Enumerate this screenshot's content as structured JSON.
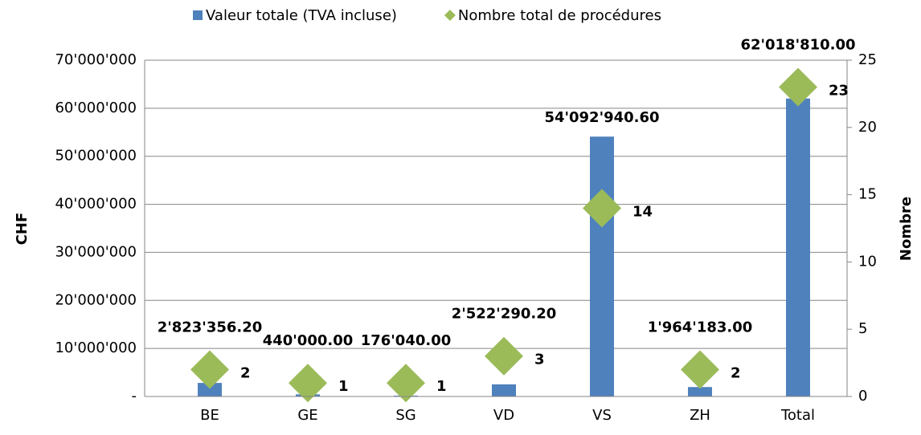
{
  "chart_data": {
    "type": "bar",
    "categories": [
      "BE",
      "GE",
      "SG",
      "VD",
      "VS",
      "ZH",
      "Total"
    ],
    "series": [
      {
        "name": "Valeur totale (TVA incluse)",
        "type": "bar",
        "color": "#4f81bd",
        "values": [
          2823356.2,
          440000.0,
          176040.0,
          2522290.2,
          54092940.6,
          1964183.0,
          62018810.0
        ],
        "value_labels": [
          "2'823'356.20",
          "440'000.00",
          "176'040.00",
          "2'522'290.20",
          "54'092'940.60",
          "1'964'183.00",
          "62'018'810.00"
        ]
      },
      {
        "name": "Nombre total de procédures",
        "type": "scatter",
        "axis": "y2",
        "color": "#9bbb59",
        "values": [
          2,
          1,
          1,
          3,
          14,
          2,
          23
        ]
      }
    ],
    "ylabel": "CHF",
    "y2label": "Nombre",
    "ylim": [
      0,
      70000000
    ],
    "yticks": [
      {
        "value": 0,
        "label": "-"
      },
      {
        "value": 10000000,
        "label": "10'000'000"
      },
      {
        "value": 20000000,
        "label": "20'000'000"
      },
      {
        "value": 30000000,
        "label": "30'000'000"
      },
      {
        "value": 40000000,
        "label": "40'000'000"
      },
      {
        "value": 50000000,
        "label": "50'000'000"
      },
      {
        "value": 60000000,
        "label": "60'000'000"
      },
      {
        "value": 70000000,
        "label": "70'000'000"
      }
    ],
    "y2lim": [
      0,
      25
    ],
    "y2ticks": [
      0,
      5,
      10,
      15,
      20,
      25
    ],
    "grid": true,
    "legend": "top"
  }
}
